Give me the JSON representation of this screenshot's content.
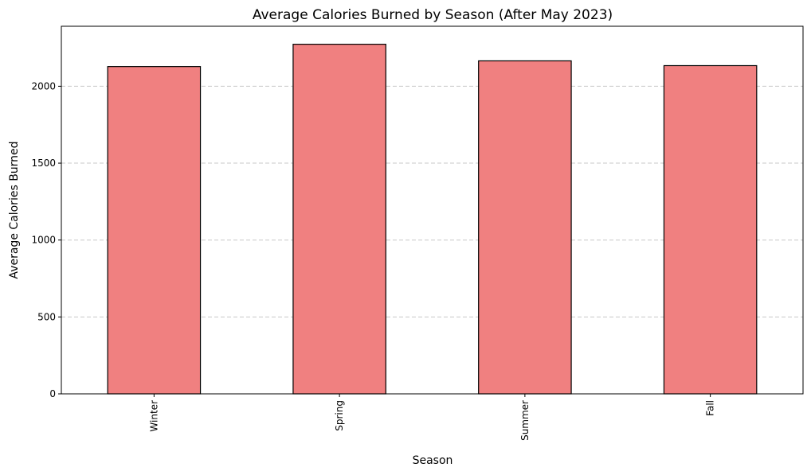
{
  "chart_data": {
    "type": "bar",
    "title": "Average Calories Burned by Season (After May 2023)",
    "xlabel": "Season",
    "ylabel": "Average Calories Burned",
    "categories": [
      "Winter",
      "Spring",
      "Summer",
      "Fall"
    ],
    "values": [
      2128,
      2273,
      2165,
      2134
    ],
    "ylim": [
      0,
      2390
    ],
    "yticks": [
      0,
      500,
      1000,
      1500,
      2000
    ],
    "ytick_labels": [
      "0",
      "500",
      "1000",
      "1500",
      "2000"
    ],
    "grid": "y-dashed",
    "legend": "none",
    "bar_color": "#f08080",
    "bar_edge_color": "#000000",
    "grid_color": "#c8c8c8"
  }
}
